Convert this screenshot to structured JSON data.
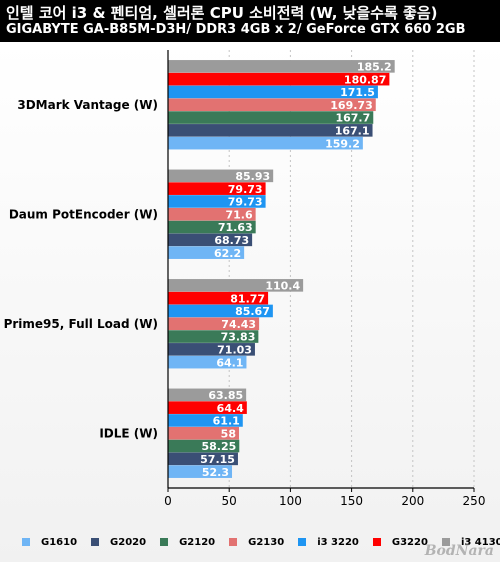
{
  "header": {
    "title": "인텔 코어 i3 & 펜티엄, 셀러론 CPU 소비전력 (W, 낮을수록 좋음)",
    "subtitle": "GIGABYTE GA-B85M-D3H/ DDR3 4GB x 2/ GeForce GTX 660 2GB"
  },
  "watermark": "BodNara",
  "chart_data": {
    "type": "bar",
    "orientation": "horizontal",
    "title": "인텔 코어 i3 & 펜티엄, 셀러론 CPU 소비전력 (W, 낮을수록 좋음)",
    "subtitle": "GIGABYTE GA-B85M-D3H/ DDR3 4GB x 2/ GeForce GTX 660 2GB",
    "xlim": [
      0,
      250
    ],
    "xticks": [
      0,
      50,
      100,
      150,
      200,
      250
    ],
    "grid": "dashed vertical",
    "legend_position": "bottom",
    "categories": [
      "3DMark Vantage (W)",
      "Daum PotEncoder (W)",
      "Prime95, Full Load (W)",
      "IDLE (W)"
    ],
    "series": [
      {
        "name": "G1610",
        "color": "#6fb5f5",
        "values": [
          159.2,
          62.2,
          64.1,
          52.3
        ],
        "labels": [
          "159.2",
          "62.2",
          "64.1",
          "52.3"
        ]
      },
      {
        "name": "G2020",
        "color": "#3a4f75",
        "values": [
          167.1,
          68.73,
          71.03,
          57.15
        ],
        "labels": [
          "167.1",
          "68.73",
          "71.03",
          "57.15"
        ]
      },
      {
        "name": "G2120",
        "color": "#3a7a58",
        "values": [
          167.7,
          71.63,
          73.83,
          58.25
        ],
        "labels": [
          "167.7",
          "71.63",
          "73.83",
          "58.25"
        ]
      },
      {
        "name": "G2130",
        "color": "#e27271",
        "values": [
          169.73,
          71.6,
          74.43,
          58
        ],
        "labels": [
          "169.73",
          "71.6",
          "74.43",
          "58"
        ]
      },
      {
        "name": "i3 3220",
        "color": "#1e95f2",
        "values": [
          171.5,
          79.73,
          85.67,
          61.1
        ],
        "labels": [
          "171.5",
          "79.73",
          "85.67",
          "61.1"
        ]
      },
      {
        "name": "G3220",
        "color": "#ff0000",
        "values": [
          180.87,
          79.73,
          81.77,
          64.4
        ],
        "labels": [
          "180.87",
          "79.73",
          "81.77",
          "64.4"
        ]
      },
      {
        "name": "i3 4130",
        "color": "#9b9b9b",
        "values": [
          185.2,
          85.93,
          110.4,
          63.85
        ],
        "labels": [
          "185.2",
          "85.93",
          "110.4",
          "63.85"
        ]
      }
    ]
  }
}
